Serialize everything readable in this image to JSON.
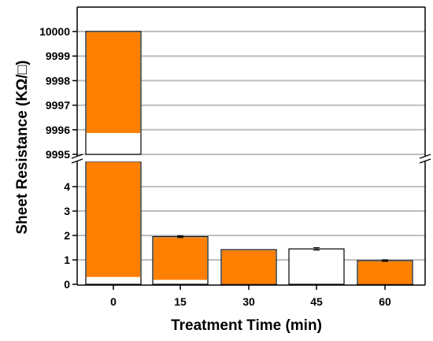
{
  "chart_data": {
    "type": "bar",
    "xlabel": "Treatment Time (min)",
    "ylabel": "Sheet Resistance (KΩ/□)",
    "categories": [
      "0",
      "15",
      "30",
      "45",
      "60"
    ],
    "series": [
      {
        "values": [
          10000,
          1.95,
          1.42,
          1.45,
          0.97
        ],
        "error": [
          0,
          0.04,
          0,
          0.05,
          0.03
        ],
        "fill_fraction": [
          0.94,
          0.89,
          0.97,
          0.0,
          0.96
        ]
      }
    ],
    "y_axis_break": true,
    "ylim_lower": [
      0,
      5
    ],
    "ylim_upper": [
      9995,
      10000
    ],
    "yticks_lower": [
      "0",
      "1",
      "2",
      "3",
      "4"
    ],
    "yticks_upper": [
      "9995",
      "9996",
      "9997",
      "9998",
      "9999",
      "10000"
    ],
    "grid": "horizontal",
    "legend": "none",
    "colors": {
      "fill": "#ff8000",
      "grid": "#bdbdbd",
      "bar_outline": "#000000",
      "axis": "#000000"
    }
  }
}
